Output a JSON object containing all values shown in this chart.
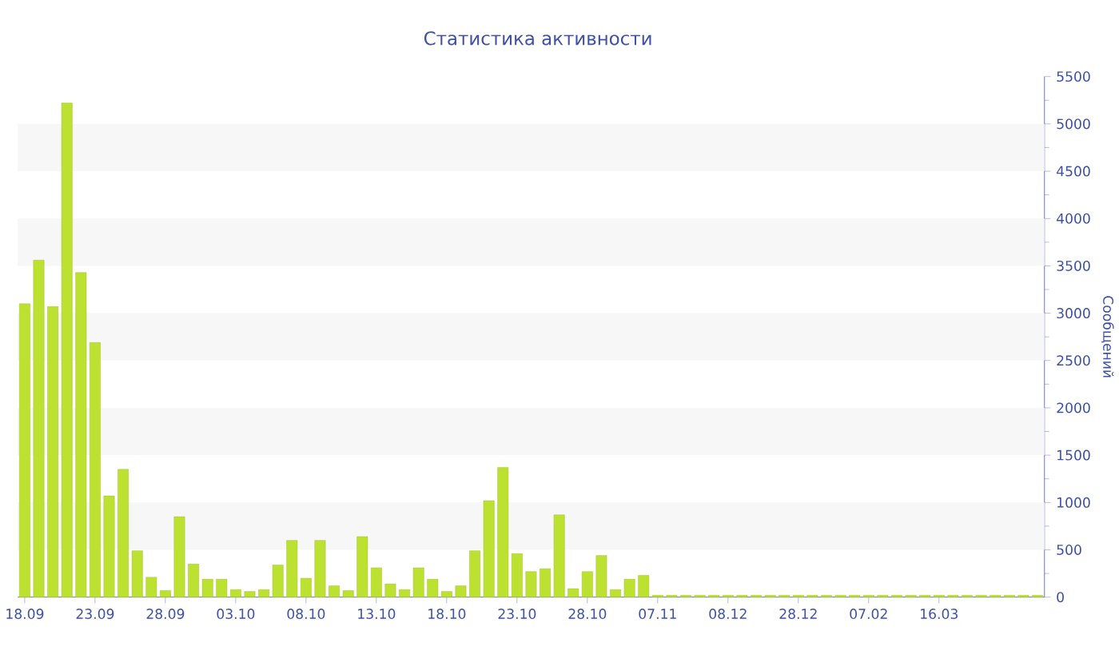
{
  "chart_data": {
    "type": "bar",
    "title": "Статистика активности",
    "ylabel": "Сообщений",
    "categories": [
      "18.09",
      null,
      null,
      null,
      null,
      "23.09",
      null,
      null,
      null,
      null,
      "28.09",
      null,
      null,
      null,
      null,
      "03.10",
      null,
      null,
      null,
      null,
      "08.10",
      null,
      null,
      null,
      null,
      "13.10",
      null,
      null,
      null,
      null,
      "18.10",
      null,
      null,
      null,
      null,
      "23.10",
      null,
      null,
      null,
      null,
      "28.10",
      null,
      null,
      null,
      null,
      "07.11",
      null,
      null,
      null,
      null,
      "08.12",
      null,
      null,
      null,
      null,
      "28.12",
      null,
      null,
      null,
      null,
      "07.02",
      null,
      null,
      null,
      null,
      "16.03",
      null,
      null,
      null,
      null,
      null,
      null,
      null
    ],
    "values": [
      3100,
      3560,
      3070,
      5220,
      3430,
      2690,
      1070,
      1350,
      490,
      210,
      70,
      850,
      350,
      190,
      190,
      80,
      60,
      80,
      340,
      600,
      200,
      600,
      120,
      70,
      640,
      310,
      140,
      80,
      310,
      190,
      60,
      120,
      490,
      1020,
      1370,
      460,
      270,
      300,
      870,
      90,
      270,
      440,
      80,
      190,
      230,
      20,
      20,
      20,
      20,
      20,
      20,
      20,
      20,
      20,
      20,
      20,
      20,
      20,
      20,
      20,
      20,
      20,
      20,
      20,
      20,
      20,
      20,
      20,
      20,
      20,
      20,
      20,
      20
    ],
    "color": "#bde130",
    "ylim": [
      0,
      5500
    ],
    "yticks": [
      0,
      500,
      1000,
      1500,
      2000,
      2500,
      3000,
      3500,
      4000,
      4500,
      5000,
      5500
    ],
    "bands": [
      {
        "axis": "y",
        "from": 500,
        "to": 1000,
        "color": "#f7f7f7"
      },
      {
        "axis": "y",
        "from": 1500,
        "to": 2000,
        "color": "#f7f7f7"
      },
      {
        "axis": "y",
        "from": 2500,
        "to": 3000,
        "color": "#f7f7f7"
      },
      {
        "axis": "y",
        "from": 3500,
        "to": 4000,
        "color": "#f7f7f7"
      },
      {
        "axis": "y",
        "from": 4500,
        "to": 5000,
        "color": "#f7f7f7"
      }
    ]
  }
}
